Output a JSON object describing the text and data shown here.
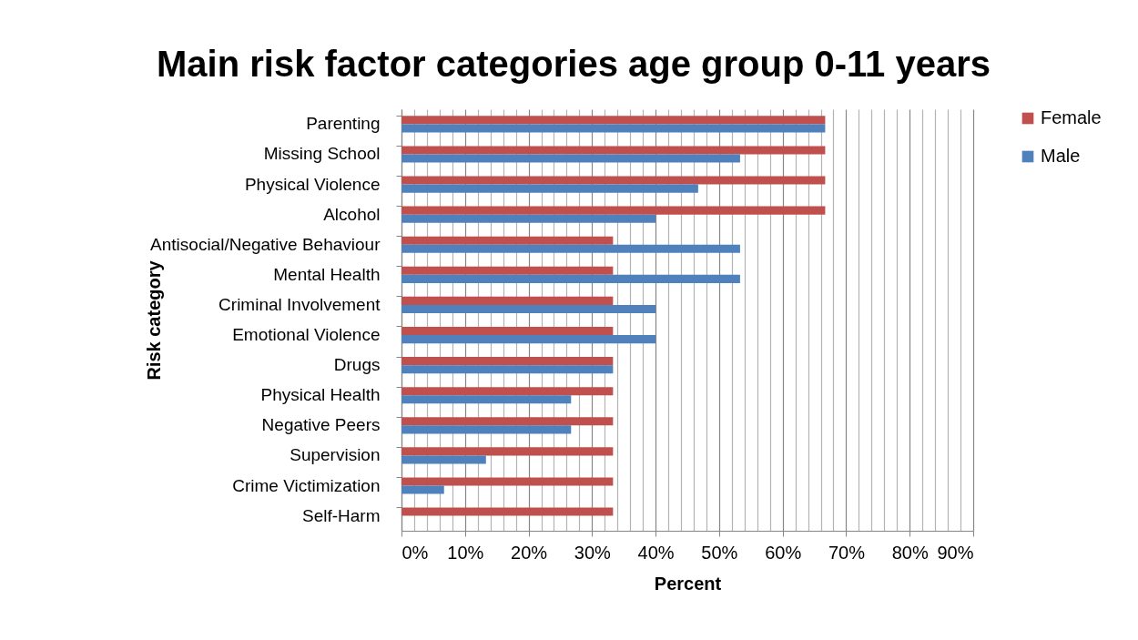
{
  "chart_data": {
    "type": "bar",
    "orientation": "horizontal",
    "title": "Main risk factor categories age group 0-11 years",
    "xlabel": "Percent",
    "ylabel": "Risk category",
    "categories": [
      "Parenting",
      "Missing School",
      "Physical Violence",
      "Alcohol",
      "Antisocial/Negative Behaviour",
      "Mental Health",
      "Criminal Involvement",
      "Emotional Violence",
      "Drugs",
      "Physical Health",
      "Negative Peers",
      "Supervision",
      "Crime Victimization",
      "Self-Harm"
    ],
    "series": [
      {
        "name": "Female",
        "color": "#c0504d",
        "values": [
          66.7,
          66.7,
          66.7,
          66.7,
          33.3,
          33.3,
          33.3,
          33.3,
          33.3,
          33.3,
          33.3,
          33.3,
          33.3,
          33.3
        ]
      },
      {
        "name": "Male",
        "color": "#4f81bd",
        "values": [
          66.7,
          53.3,
          46.7,
          40,
          53.3,
          53.3,
          40,
          40,
          33.3,
          26.7,
          26.7,
          13.3,
          6.7,
          0
        ]
      }
    ],
    "xlim": [
      0,
      90
    ],
    "xticks": [
      {
        "value": 0,
        "label": "0%"
      },
      {
        "value": 2,
        "label": null
      },
      {
        "value": 4,
        "label": null
      },
      {
        "value": 6,
        "label": null
      },
      {
        "value": 8,
        "label": null
      },
      {
        "value": 10,
        "label": "10%"
      },
      {
        "value": 12,
        "label": null
      },
      {
        "value": 14,
        "label": null
      },
      {
        "value": 16,
        "label": null
      },
      {
        "value": 18,
        "label": null
      },
      {
        "value": 20,
        "label": "20%"
      },
      {
        "value": 22,
        "label": null
      },
      {
        "value": 24,
        "label": null
      },
      {
        "value": 26,
        "label": null
      },
      {
        "value": 28,
        "label": null
      },
      {
        "value": 30,
        "label": "30%"
      },
      {
        "value": 32,
        "label": null
      },
      {
        "value": 34,
        "label": null
      },
      {
        "value": 36,
        "label": null
      },
      {
        "value": 38,
        "label": null
      },
      {
        "value": 40,
        "label": "40%"
      },
      {
        "value": 42,
        "label": null
      },
      {
        "value": 44,
        "label": null
      },
      {
        "value": 46,
        "label": null
      },
      {
        "value": 48,
        "label": null
      },
      {
        "value": 50,
        "label": "50%"
      },
      {
        "value": 52,
        "label": null
      },
      {
        "value": 54,
        "label": null
      },
      {
        "value": 56,
        "label": null
      },
      {
        "value": 58,
        "label": null
      },
      {
        "value": 60,
        "label": "60%"
      },
      {
        "value": 62,
        "label": null
      },
      {
        "value": 64,
        "label": null
      },
      {
        "value": 66,
        "label": null
      },
      {
        "value": 68,
        "label": null
      },
      {
        "value": 70,
        "label": "70%"
      },
      {
        "value": 72,
        "label": null
      },
      {
        "value": 74,
        "label": null
      },
      {
        "value": 76,
        "label": null
      },
      {
        "value": 78,
        "label": null
      },
      {
        "value": 80,
        "label": "80%"
      },
      {
        "value": 82,
        "label": null
      },
      {
        "value": 84,
        "label": null
      },
      {
        "value": 86,
        "label": null
      },
      {
        "value": 88,
        "label": null
      },
      {
        "value": 90,
        "label": "90%"
      }
    ],
    "grid": "x",
    "legend": "right"
  }
}
